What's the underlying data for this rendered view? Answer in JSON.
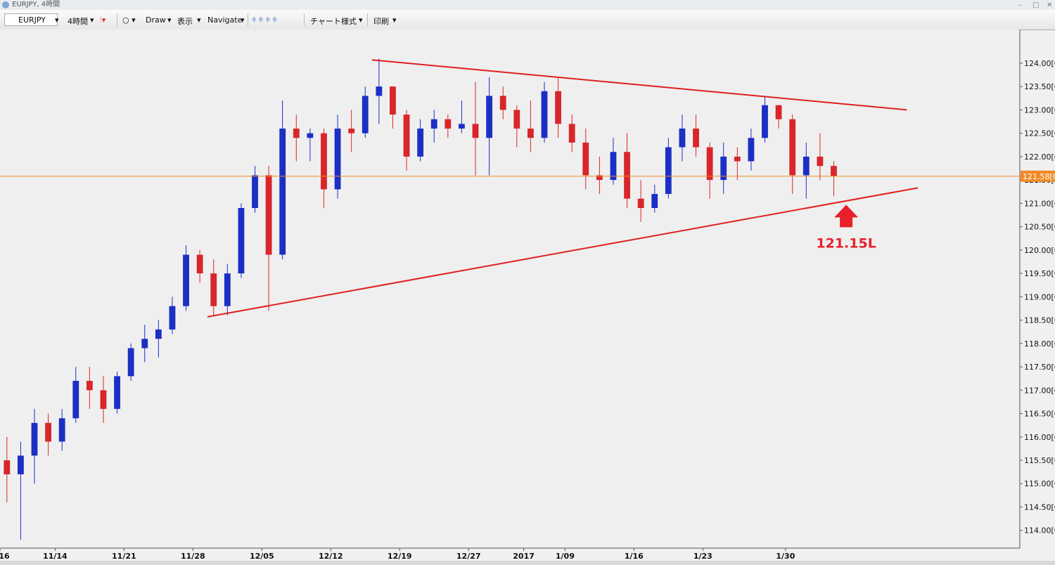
{
  "window": {
    "title": "EURJPY, 4時間"
  },
  "toolbar": {
    "symbol": "EURJPY",
    "timeframe": "4時間",
    "items": [
      "Draw",
      "表示",
      "Navigate",
      "チャート様式",
      "印刷"
    ]
  },
  "chart_data": {
    "type": "candlestick",
    "up_color": "#1c2fc4",
    "down_color": "#d8262a",
    "open": [
      115.5,
      115.2,
      115.6,
      116.3,
      115.9,
      116.4,
      117.2,
      117.0,
      116.6,
      117.3,
      117.9,
      118.1,
      118.3,
      118.8,
      119.9,
      119.5,
      118.8,
      119.5,
      120.9,
      121.6,
      119.9,
      122.6,
      122.4,
      122.5,
      121.3,
      122.6,
      122.5,
      123.3,
      123.5,
      122.9,
      122.0,
      122.6,
      122.8,
      122.6,
      122.7,
      122.4,
      123.3,
      123.0,
      122.6,
      122.4,
      123.4,
      122.7,
      122.3,
      121.6,
      121.5,
      122.1,
      121.1,
      120.9,
      121.2,
      122.2,
      122.6,
      122.2,
      121.5,
      122.0,
      121.9,
      122.4,
      123.1,
      122.8,
      121.6,
      122.0,
      121.8
    ],
    "high": [
      116.0,
      115.9,
      116.6,
      116.5,
      116.6,
      117.5,
      117.5,
      117.3,
      117.4,
      118.0,
      118.4,
      118.5,
      119.0,
      120.1,
      120.0,
      119.8,
      119.7,
      121.0,
      121.8,
      121.8,
      123.2,
      122.9,
      122.6,
      122.6,
      122.9,
      123.0,
      123.5,
      124.1,
      123.5,
      123.0,
      122.8,
      123.0,
      122.9,
      123.2,
      123.6,
      123.7,
      123.5,
      123.1,
      123.2,
      123.6,
      123.7,
      122.9,
      122.6,
      122.0,
      122.4,
      122.5,
      121.5,
      121.4,
      122.4,
      122.9,
      122.9,
      122.3,
      122.3,
      122.2,
      122.6,
      123.3,
      123.1,
      122.9,
      122.3,
      122.5,
      121.9
    ],
    "low": [
      114.6,
      113.8,
      115.0,
      115.6,
      115.7,
      116.3,
      116.6,
      116.3,
      116.5,
      117.2,
      117.6,
      117.7,
      118.2,
      118.7,
      119.3,
      118.6,
      118.6,
      119.4,
      120.8,
      118.7,
      119.8,
      121.9,
      121.9,
      120.9,
      121.1,
      122.1,
      122.4,
      122.7,
      122.6,
      121.7,
      121.9,
      122.3,
      122.4,
      122.5,
      121.6,
      121.6,
      122.8,
      122.2,
      122.1,
      122.3,
      122.4,
      122.1,
      121.3,
      121.2,
      121.4,
      120.9,
      120.6,
      120.8,
      121.1,
      121.9,
      122.0,
      121.1,
      121.2,
      121.5,
      121.7,
      122.3,
      122.6,
      121.2,
      121.1,
      121.5,
      121.15
    ],
    "close": [
      115.2,
      115.6,
      116.3,
      115.9,
      116.4,
      117.2,
      117.0,
      116.6,
      117.3,
      117.9,
      118.1,
      118.3,
      118.8,
      119.9,
      119.5,
      118.8,
      119.5,
      120.9,
      121.6,
      119.9,
      122.6,
      122.4,
      122.5,
      121.3,
      122.6,
      122.5,
      123.3,
      123.5,
      122.9,
      122.0,
      122.6,
      122.8,
      122.6,
      122.7,
      122.4,
      123.3,
      123.0,
      122.6,
      122.4,
      123.4,
      122.7,
      122.3,
      121.6,
      121.5,
      122.1,
      121.1,
      120.9,
      121.2,
      122.2,
      122.6,
      122.2,
      121.5,
      122.0,
      121.9,
      122.4,
      123.1,
      122.8,
      121.6,
      122.0,
      121.8,
      121.58
    ],
    "xlim": [
      0,
      74
    ],
    "xticks": [
      {
        "value": 0,
        "label": "16"
      },
      {
        "value": 4,
        "label": "11/14"
      },
      {
        "value": 9,
        "label": "11/21"
      },
      {
        "value": 14,
        "label": "11/28"
      },
      {
        "value": 19,
        "label": "12/05"
      },
      {
        "value": 24,
        "label": "12/12"
      },
      {
        "value": 29,
        "label": "12/19"
      },
      {
        "value": 34,
        "label": "12/27"
      },
      {
        "value": 38,
        "label": "2017"
      },
      {
        "value": 41,
        "label": "1/09"
      },
      {
        "value": 46,
        "label": "1/16"
      },
      {
        "value": 51,
        "label": "1/23"
      },
      {
        "value": 57,
        "label": "1/30"
      }
    ],
    "ylim": [
      113.62,
      124.72
    ],
    "yticks": [
      {
        "value": 114,
        "label": "114.00[0"
      },
      {
        "value": 114.5,
        "label": "114.50[0"
      },
      {
        "value": 115,
        "label": "115.00[0"
      },
      {
        "value": 115.5,
        "label": "115.50[0"
      },
      {
        "value": 116,
        "label": "116.00[0"
      },
      {
        "value": 116.5,
        "label": "116.50[0"
      },
      {
        "value": 117,
        "label": "117.00[0"
      },
      {
        "value": 117.5,
        "label": "117.50[0"
      },
      {
        "value": 118,
        "label": "118.00[0"
      },
      {
        "value": 118.5,
        "label": "118.50[0"
      },
      {
        "value": 119,
        "label": "119.00[0"
      },
      {
        "value": 119.5,
        "label": "119.50[0"
      },
      {
        "value": 120,
        "label": "120.00[0"
      },
      {
        "value": 120.5,
        "label": "120.50[0"
      },
      {
        "value": 121,
        "label": "121.00[0"
      },
      {
        "value": 121.5,
        "label": "121.50[0"
      },
      {
        "value": 122,
        "label": "122.00[0"
      },
      {
        "value": 122.5,
        "label": "122.50[0"
      },
      {
        "value": 123,
        "label": "123.00[0"
      },
      {
        "value": 123.5,
        "label": "123.50[0"
      },
      {
        "value": 124,
        "label": "124.00[0"
      }
    ],
    "current_price": {
      "value": 121.58,
      "label": "121.58[0",
      "color": "#f08a24"
    },
    "trendlines": [
      {
        "x": [
          27.0,
          65.8
        ],
        "y": [
          124.07,
          123.0
        ],
        "color": "#e02020"
      },
      {
        "x": [
          15.05,
          66.6
        ],
        "y": [
          118.57,
          121.33
        ],
        "color": "#e02020"
      }
    ],
    "annotation": {
      "text": "121.15L",
      "color": "#e8202a"
    }
  }
}
